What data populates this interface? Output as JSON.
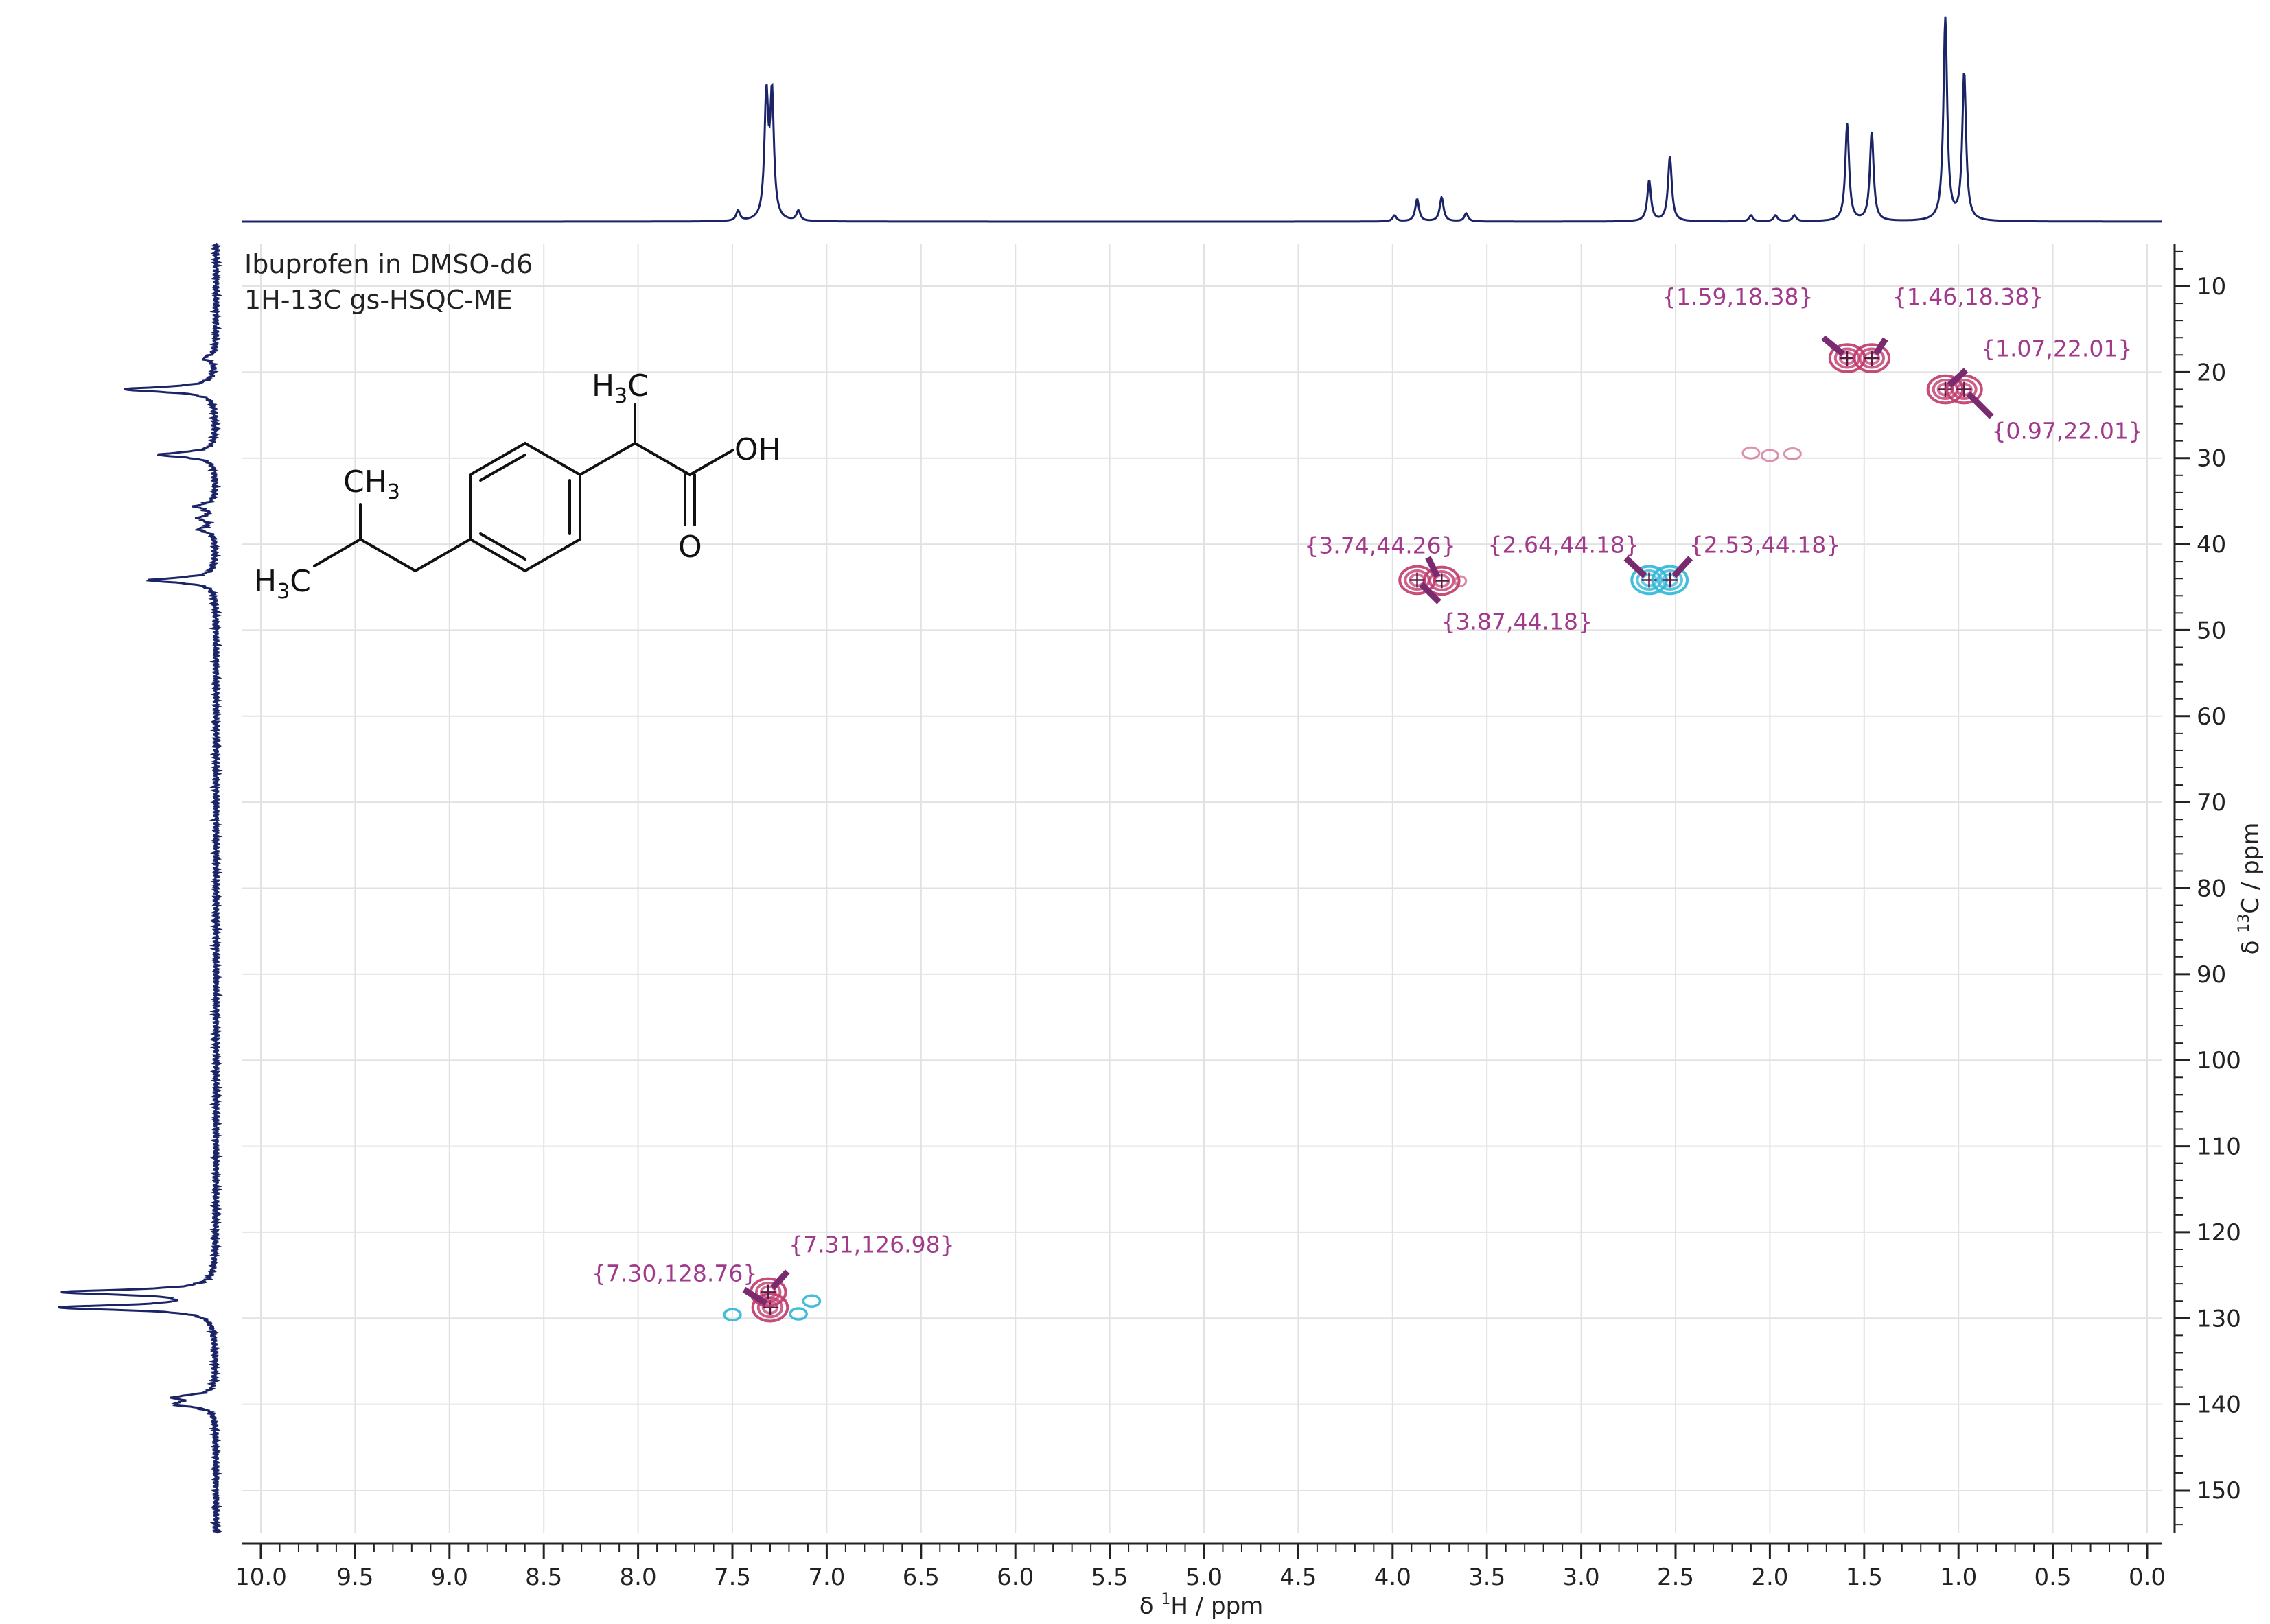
{
  "info": {
    "line1": "Ibuprofen in DMSO-d6",
    "line2": "1H-13C gs-HSQC-ME"
  },
  "colors": {
    "projection": "#1a2466",
    "positive": "#c0396b",
    "negative": "#2fb6d8",
    "label": "#a23a8c",
    "grid": "#e2e2e2",
    "axis": "#222222"
  },
  "molecule": {
    "name": "ibuprofen",
    "labels": {
      "h3c_top": "H",
      "h3c_top_sub": "3",
      "h3c_top_c": "C",
      "oh": "OH",
      "o": "O",
      "ch3": "CH",
      "ch3_sub": "3",
      "h3c_left": "H",
      "h3c_left_sub": "3",
      "h3c_left_c": "C"
    }
  },
  "chart_data": {
    "type": "scatter",
    "subtype": "2D NMR HSQC contour with 1D projections",
    "xlabel_prefix": "δ ",
    "xlabel_sup": "1",
    "xlabel_suffix": "H / ppm",
    "ylabel_prefix": "δ ",
    "ylabel_sup": "13",
    "ylabel_suffix": "C / ppm",
    "xlim": [
      10.0,
      0.0
    ],
    "ylim": [
      5,
      155
    ],
    "x_ticks": [
      "10.0",
      "9.5",
      "9.0",
      "8.5",
      "8.0",
      "7.5",
      "7.0",
      "6.5",
      "6.0",
      "5.5",
      "5.0",
      "4.5",
      "4.0",
      "3.5",
      "3.0",
      "2.5",
      "2.0",
      "1.5",
      "1.0",
      "0.5",
      "0.0"
    ],
    "y_ticks": [
      "10",
      "20",
      "30",
      "40",
      "50",
      "60",
      "70",
      "80",
      "90",
      "100",
      "110",
      "120",
      "130",
      "140",
      "150"
    ],
    "grid": true,
    "peaks": [
      {
        "x": 1.59,
        "y": 18.38,
        "label": "{1.59,18.38}",
        "phase": "positive"
      },
      {
        "x": 1.46,
        "y": 18.38,
        "label": "{1.46,18.38}",
        "phase": "positive"
      },
      {
        "x": 1.07,
        "y": 22.01,
        "label": "{1.07,22.01}",
        "phase": "positive"
      },
      {
        "x": 0.97,
        "y": 22.01,
        "label": "{0.97,22.01}",
        "phase": "positive"
      },
      {
        "x": 3.74,
        "y": 44.26,
        "label": "{3.74,44.26}",
        "phase": "positive"
      },
      {
        "x": 3.87,
        "y": 44.18,
        "label": "{3.87,44.18}",
        "phase": "positive"
      },
      {
        "x": 2.64,
        "y": 44.18,
        "label": "{2.64,44.18}",
        "phase": "negative"
      },
      {
        "x": 2.53,
        "y": 44.18,
        "label": "{2.53,44.18}",
        "phase": "negative"
      },
      {
        "x": 7.3,
        "y": 128.76,
        "label": "{7.30,128.76}",
        "phase": "positive"
      },
      {
        "x": 7.31,
        "y": 126.98,
        "label": "{7.31,126.98}",
        "phase": "positive"
      }
    ],
    "h_projection_peaks": [
      {
        "x": 7.32,
        "height": 0.6
      },
      {
        "x": 7.29,
        "height": 0.6
      },
      {
        "x": 7.47,
        "height": 0.05
      },
      {
        "x": 7.15,
        "height": 0.05
      },
      {
        "x": 3.87,
        "height": 0.11
      },
      {
        "x": 3.74,
        "height": 0.12
      },
      {
        "x": 3.61,
        "height": 0.04
      },
      {
        "x": 3.99,
        "height": 0.03
      },
      {
        "x": 2.64,
        "height": 0.2
      },
      {
        "x": 2.53,
        "height": 0.32
      },
      {
        "x": 2.1,
        "height": 0.03
      },
      {
        "x": 1.97,
        "height": 0.03
      },
      {
        "x": 1.87,
        "height": 0.03
      },
      {
        "x": 1.59,
        "height": 0.48
      },
      {
        "x": 1.46,
        "height": 0.44
      },
      {
        "x": 1.07,
        "height": 1.0
      },
      {
        "x": 0.97,
        "height": 0.73
      }
    ],
    "c_projection_peaks": [
      {
        "y": 18.38,
        "height": 0.06
      },
      {
        "y": 22.01,
        "height": 0.47
      },
      {
        "y": 29.6,
        "height": 0.29
      },
      {
        "y": 35.6,
        "height": 0.1
      },
      {
        "y": 37.0,
        "height": 0.08
      },
      {
        "y": 38.3,
        "height": 0.08
      },
      {
        "y": 44.2,
        "height": 0.34
      },
      {
        "y": 126.98,
        "height": 0.77
      },
      {
        "y": 128.76,
        "height": 0.79
      },
      {
        "y": 139.2,
        "height": 0.19
      },
      {
        "y": 140.0,
        "height": 0.19
      }
    ]
  }
}
